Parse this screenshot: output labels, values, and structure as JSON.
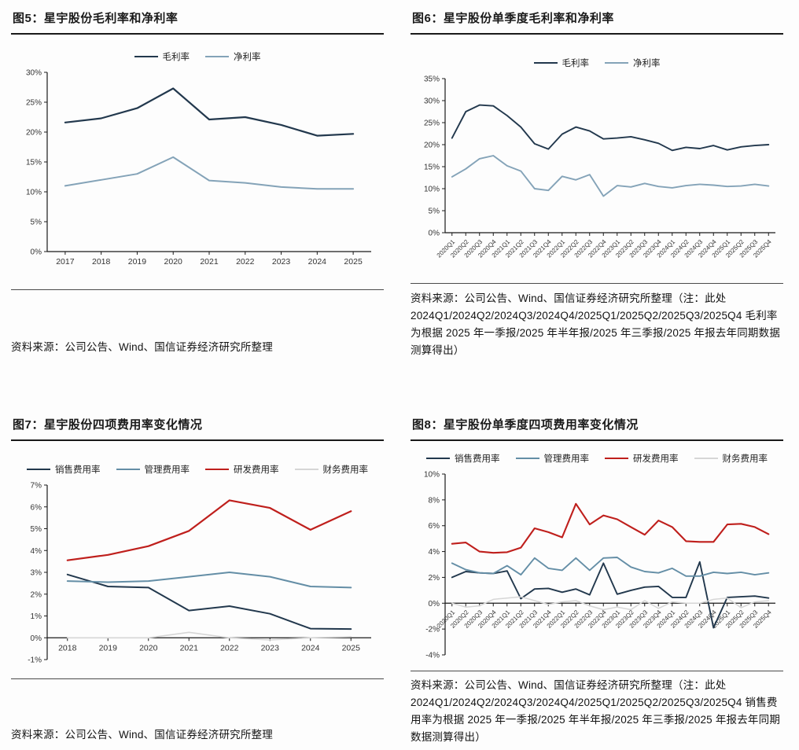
{
  "colors": {
    "gross_net_dark": "#22384d",
    "gross_net_light": "#84a3b8",
    "sales_navy": "#22384d",
    "admin_steel": "#648ea6",
    "rd_red": "#bf1f1c",
    "finance_gray": "#d6d6d6",
    "axis": "#1a1a1a",
    "tick_text": "#333333"
  },
  "chart_data": [
    {
      "id": "fig5",
      "type": "line",
      "title": "图5：星宇股份毛利率和净利率",
      "source": "资料来源：公司公告、Wind、国信证券经济研究所整理",
      "categories": [
        "2017",
        "2018",
        "2019",
        "2020",
        "2021",
        "2022",
        "2023",
        "2024",
        "2025"
      ],
      "series": [
        {
          "name": "毛利率",
          "color": "#22384d",
          "width": 2.2,
          "values": [
            21.6,
            22.3,
            24.0,
            27.3,
            22.1,
            22.5,
            21.2,
            19.4,
            19.7
          ]
        },
        {
          "name": "净利率",
          "color": "#84a3b8",
          "width": 2.0,
          "values": [
            11.0,
            12.0,
            13.0,
            15.8,
            11.9,
            11.5,
            10.8,
            10.5,
            10.5
          ]
        }
      ],
      "ylim": [
        0,
        30
      ],
      "ystep": 5,
      "y_format": "percent",
      "x_axis_at": 0,
      "x_label_rotate": false,
      "grid": false,
      "legend_position": "top"
    },
    {
      "id": "fig6",
      "type": "line",
      "title": "图6：星宇股份单季度毛利率和净利率",
      "source": "资料来源：公司公告、Wind、国信证券经济研究所整理（注：此处2024Q1/2024Q2/2024Q3/2024Q4/2025Q1/2025Q2/2025Q3/2025Q4 毛利率为根据 2025 年一季报/2025 年半年报/2025 年三季报/2025 年报去年同期数据测算得出）",
      "categories": [
        "2020Q1",
        "2020Q2",
        "2020Q3",
        "2020Q4",
        "2021Q1",
        "2021Q2",
        "2021Q3",
        "2021Q4",
        "2022Q1",
        "2022Q2",
        "2022Q3",
        "2022Q4",
        "2023Q1",
        "2023Q2",
        "2023Q3",
        "2023Q4",
        "2024Q1",
        "2024Q2",
        "2024Q3",
        "2024Q4",
        "2025Q1",
        "2025Q2",
        "2025Q3",
        "2025Q4"
      ],
      "series": [
        {
          "name": "毛利率",
          "color": "#22384d",
          "width": 1.9,
          "values": [
            21.5,
            27.5,
            29.0,
            28.8,
            26.6,
            24.0,
            20.2,
            19.0,
            22.4,
            24.0,
            23.1,
            21.3,
            21.5,
            21.8,
            21.1,
            20.3,
            18.7,
            19.4,
            19.1,
            19.8,
            18.8,
            19.5,
            19.8,
            20.0
          ]
        },
        {
          "name": "净利率",
          "color": "#84a3b8",
          "width": 1.9,
          "values": [
            12.7,
            14.5,
            16.8,
            17.5,
            15.2,
            14.0,
            10.0,
            9.6,
            12.8,
            12.0,
            13.2,
            8.3,
            10.7,
            10.4,
            11.2,
            10.5,
            10.2,
            10.7,
            11.0,
            10.8,
            10.5,
            10.6,
            11.0,
            10.6
          ]
        }
      ],
      "ylim": [
        0,
        35
      ],
      "ystep": 5,
      "y_format": "percent",
      "x_axis_at": 0,
      "x_label_rotate": true,
      "grid": false,
      "legend_position": "top"
    },
    {
      "id": "fig7",
      "type": "line",
      "title": "图7：星宇股份四项费用率变化情况",
      "source": "资料来源：公司公告、Wind、国信证券经济研究所整理",
      "categories": [
        "2018",
        "2019",
        "2020",
        "2021",
        "2022",
        "2023",
        "2024",
        "2025"
      ],
      "series": [
        {
          "name": "销售费用率",
          "color": "#22384d",
          "width": 2.0,
          "values": [
            2.9,
            2.35,
            2.3,
            1.25,
            1.45,
            1.1,
            0.42,
            0.4
          ]
        },
        {
          "name": "管理费用率",
          "color": "#648ea6",
          "width": 2.0,
          "values": [
            2.6,
            2.55,
            2.6,
            2.8,
            3.0,
            2.8,
            2.35,
            2.3
          ]
        },
        {
          "name": "研发费用率",
          "color": "#bf1f1c",
          "width": 2.2,
          "values": [
            3.55,
            3.8,
            4.2,
            4.9,
            6.3,
            5.95,
            4.95,
            5.8
          ]
        },
        {
          "name": "财务费用率",
          "color": "#d6d6d6",
          "width": 1.6,
          "values": [
            0.0,
            0.0,
            0.0,
            0.25,
            0.0,
            -0.1,
            0.0,
            0.05
          ]
        }
      ],
      "ylim": [
        -1,
        7
      ],
      "ystep": 1,
      "y_format": "percent",
      "x_axis_at": 0,
      "x_label_rotate": false,
      "grid": false,
      "legend_position": "top"
    },
    {
      "id": "fig8",
      "type": "line",
      "title": "图8：星宇股份单季度四项费用率变化情况",
      "source": "资料来源：公司公告、Wind、国信证券经济研究所整理（注：此处2024Q1/2024Q2/2024Q3/2024Q4/2025Q1/2025Q2/2025Q3/2025Q4 销售费用率为根据 2025 年一季报/2025 年半年报/2025 年三季报/2025 年报去年同期数据测算得出）",
      "categories": [
        "2020Q1",
        "2020Q2",
        "2020Q3",
        "2020Q4",
        "2021Q1",
        "2021Q2",
        "2021Q3",
        "2021Q4",
        "2022Q1",
        "2022Q2",
        "2022Q3",
        "2022Q4",
        "2023Q1",
        "2023Q2",
        "2023Q3",
        "2023Q4",
        "2024Q1",
        "2024Q2",
        "2024Q3",
        "2024Q4",
        "2025Q1",
        "2025Q2",
        "2025Q3",
        "2025Q4"
      ],
      "series": [
        {
          "name": "销售费用率",
          "color": "#22384d",
          "width": 1.9,
          "values": [
            2.0,
            2.45,
            2.35,
            2.3,
            2.5,
            0.35,
            1.1,
            1.15,
            0.85,
            1.1,
            0.65,
            3.1,
            0.7,
            1.0,
            1.25,
            1.3,
            0.45,
            0.45,
            3.2,
            -1.9,
            0.45,
            0.5,
            0.55,
            0.4
          ]
        },
        {
          "name": "管理费用率",
          "color": "#648ea6",
          "width": 1.9,
          "values": [
            3.1,
            2.6,
            2.35,
            2.3,
            2.9,
            2.2,
            3.5,
            2.7,
            2.55,
            3.5,
            2.55,
            3.5,
            3.55,
            2.8,
            2.45,
            2.35,
            2.7,
            2.1,
            2.1,
            2.4,
            2.3,
            2.4,
            2.2,
            2.35
          ]
        },
        {
          "name": "研发费用率",
          "color": "#bf1f1c",
          "width": 2.1,
          "values": [
            4.6,
            4.7,
            4.0,
            3.9,
            3.95,
            4.3,
            5.8,
            5.5,
            5.1,
            7.7,
            6.1,
            6.8,
            6.5,
            5.9,
            5.3,
            6.4,
            5.9,
            4.8,
            4.75,
            4.75,
            6.1,
            6.15,
            5.9,
            5.35
          ]
        },
        {
          "name": "财务费用率",
          "color": "#d6d6d6",
          "width": 1.5,
          "values": [
            0.0,
            -0.3,
            -0.2,
            0.3,
            0.4,
            0.5,
            0.2,
            -0.1,
            0.1,
            0.2,
            -0.2,
            -0.5,
            -0.3,
            -0.5,
            0.2,
            -0.4,
            0.1,
            0.0,
            0.0,
            0.3,
            0.4,
            -0.35,
            0.1,
            0.2
          ]
        }
      ],
      "ylim": [
        -4,
        10
      ],
      "ystep": 2,
      "y_format": "percent",
      "x_axis_at": 0,
      "x_label_rotate": true,
      "grid": false,
      "legend_position": "top"
    }
  ]
}
